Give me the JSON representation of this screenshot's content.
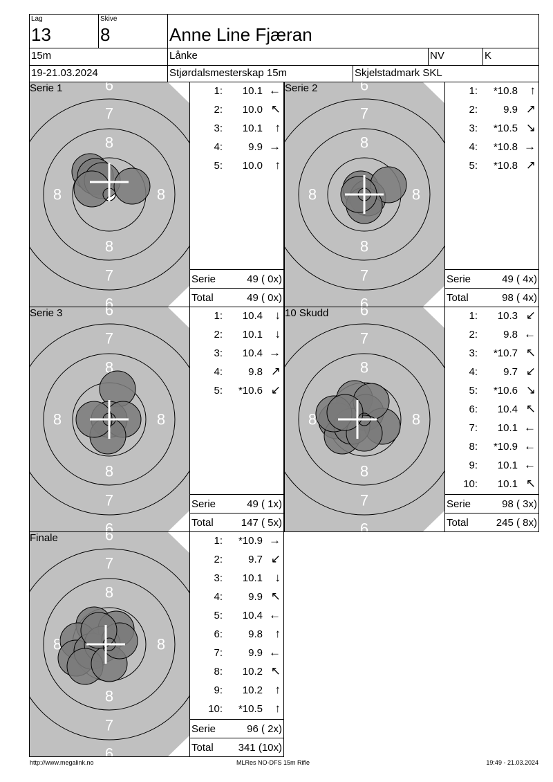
{
  "header": {
    "lag_label": "Lag",
    "lag": "13",
    "skive_label": "Skive",
    "skive": "8",
    "name": "Anne Line Fjæran",
    "distance": "15m",
    "club": "Lånke",
    "region": "NV",
    "class": "K",
    "date": "19-21.03.2024",
    "event": "Stjørdalsmesterskap 15m",
    "venue": "Skjelstadmark SKL"
  },
  "labels": {
    "serie": "Serie",
    "total": "Total"
  },
  "ring_labels": {
    "r6": "6",
    "r7": "7",
    "r8": "8"
  },
  "colors": {
    "target": "#c0c0c0",
    "shot": "#7a7a7a"
  },
  "panels": [
    {
      "title": "Serie 1",
      "shots": [
        {
          "n": "1:",
          "v": "10.1",
          "dir": "west"
        },
        {
          "n": "2:",
          "v": "10.0",
          "dir": "northwest"
        },
        {
          "n": "3:",
          "v": "10.1",
          "dir": "north"
        },
        {
          "n": "4:",
          "v": "9.9",
          "dir": "east"
        },
        {
          "n": "5:",
          "v": "10.0",
          "dir": "north"
        }
      ],
      "serie": "49 ( 0x)",
      "total": "49 ( 0x)"
    },
    {
      "title": "Serie 2",
      "shots": [
        {
          "n": "1:",
          "v": "*10.8",
          "dir": "north"
        },
        {
          "n": "2:",
          "v": "9.9",
          "dir": "northeast"
        },
        {
          "n": "3:",
          "v": "*10.5",
          "dir": "southeast"
        },
        {
          "n": "4:",
          "v": "*10.8",
          "dir": "east"
        },
        {
          "n": "5:",
          "v": "*10.8",
          "dir": "northeast"
        }
      ],
      "serie": "49 ( 4x)",
      "total": "98 ( 4x)"
    },
    {
      "title": "Serie 3",
      "shots": [
        {
          "n": "1:",
          "v": "10.4",
          "dir": "south"
        },
        {
          "n": "2:",
          "v": "10.1",
          "dir": "south"
        },
        {
          "n": "3:",
          "v": "10.4",
          "dir": "east"
        },
        {
          "n": "4:",
          "v": "9.8",
          "dir": "northeast"
        },
        {
          "n": "5:",
          "v": "*10.6",
          "dir": "southwest"
        }
      ],
      "serie": "49 ( 1x)",
      "total": "147 ( 5x)"
    },
    {
      "title": "10 Skudd",
      "shots": [
        {
          "n": "1:",
          "v": "10.3",
          "dir": "southwest"
        },
        {
          "n": "2:",
          "v": "9.8",
          "dir": "west"
        },
        {
          "n": "3:",
          "v": "*10.7",
          "dir": "northwest"
        },
        {
          "n": "4:",
          "v": "9.7",
          "dir": "southwest"
        },
        {
          "n": "5:",
          "v": "*10.6",
          "dir": "southeast"
        },
        {
          "n": "6:",
          "v": "10.4",
          "dir": "northwest"
        },
        {
          "n": "7:",
          "v": "10.1",
          "dir": "west"
        },
        {
          "n": "8:",
          "v": "*10.9",
          "dir": "west"
        },
        {
          "n": "9:",
          "v": "10.1",
          "dir": "west"
        },
        {
          "n": "10:",
          "v": "10.1",
          "dir": "northwest"
        }
      ],
      "serie": "98 ( 3x)",
      "total": "245 ( 8x)"
    },
    {
      "title": "Finale",
      "shots": [
        {
          "n": "1:",
          "v": "*10.9",
          "dir": "east"
        },
        {
          "n": "2:",
          "v": "9.7",
          "dir": "southwest"
        },
        {
          "n": "3:",
          "v": "10.1",
          "dir": "south"
        },
        {
          "n": "4:",
          "v": "9.9",
          "dir": "northwest"
        },
        {
          "n": "5:",
          "v": "10.4",
          "dir": "west"
        },
        {
          "n": "6:",
          "v": "9.8",
          "dir": "north"
        },
        {
          "n": "7:",
          "v": "9.9",
          "dir": "west"
        },
        {
          "n": "8:",
          "v": "10.2",
          "dir": "northwest"
        },
        {
          "n": "9:",
          "v": "10.2",
          "dir": "north"
        },
        {
          "n": "10:",
          "v": "*10.5",
          "dir": "north"
        }
      ],
      "serie": "96 ( 2x)",
      "total": "341 (10x)"
    }
  ],
  "footer": {
    "url": "http://www.megalink.no",
    "program": "MLRes NO-DFS 15m Rifle",
    "timestamp": "19:49 - 21.03.2024"
  }
}
